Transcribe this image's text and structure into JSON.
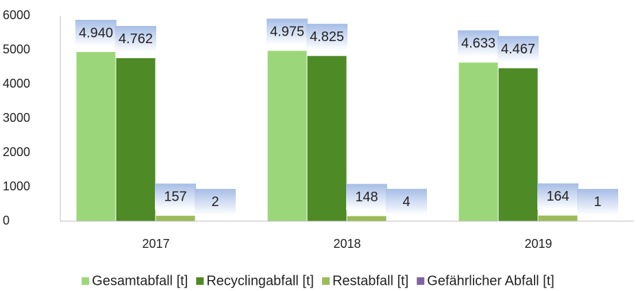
{
  "chart_data": {
    "type": "bar",
    "categories": [
      "2017",
      "2018",
      "2019"
    ],
    "series": [
      {
        "name": "Gesamtabfall [t]",
        "color": "#9bd77a",
        "values": [
          4940,
          4975,
          4633
        ],
        "value_labels": [
          "4.940",
          "4.975",
          "4.633"
        ]
      },
      {
        "name": "Recyclingabfall [t]",
        "color": "#4e8a26",
        "values": [
          4762,
          4825,
          4467
        ],
        "value_labels": [
          "4.762",
          "4.825",
          "4.467"
        ]
      },
      {
        "name": "Restabfall [t]",
        "color": "#9bbb59",
        "values": [
          157,
          148,
          164
        ],
        "value_labels": [
          "157",
          "148",
          "164"
        ]
      },
      {
        "name": "Gefährlicher Abfall [t]",
        "color": "#8064a2",
        "values": [
          2,
          4,
          1
        ],
        "value_labels": [
          "2",
          "4",
          "1"
        ]
      }
    ],
    "ylim": [
      0,
      6000
    ],
    "yticks": [
      0,
      1000,
      2000,
      3000,
      4000,
      5000,
      6000
    ],
    "grid": false,
    "legend": "bottom"
  }
}
